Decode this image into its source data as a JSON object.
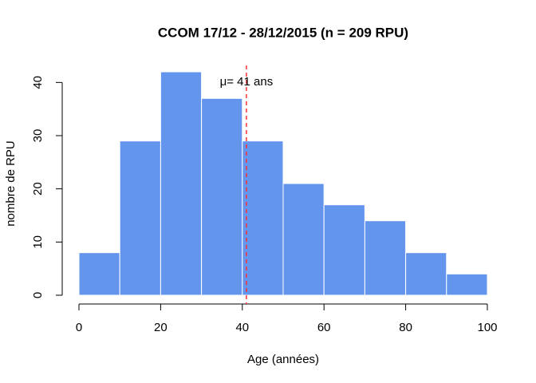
{
  "chart_data": {
    "type": "histogram",
    "title": "CCOM 17/12 - 28/12/2015 (n = 209 RPU)",
    "xlabel": "Age (années)",
    "ylabel": "nombre de RPU",
    "bins": [
      0,
      10,
      20,
      30,
      40,
      50,
      60,
      70,
      80,
      90,
      100
    ],
    "values": [
      8,
      29,
      42,
      37,
      29,
      21,
      17,
      14,
      8,
      4
    ],
    "color": "#6495ed",
    "xlim": [
      0,
      100
    ],
    "xticks": [
      0,
      20,
      40,
      60,
      80,
      100
    ],
    "ylim": [
      0,
      42
    ],
    "yticks": [
      0,
      10,
      20,
      30,
      40
    ],
    "mean": 41,
    "mean_color": "#ff3030",
    "annotation": "μ= 41 ans"
  }
}
